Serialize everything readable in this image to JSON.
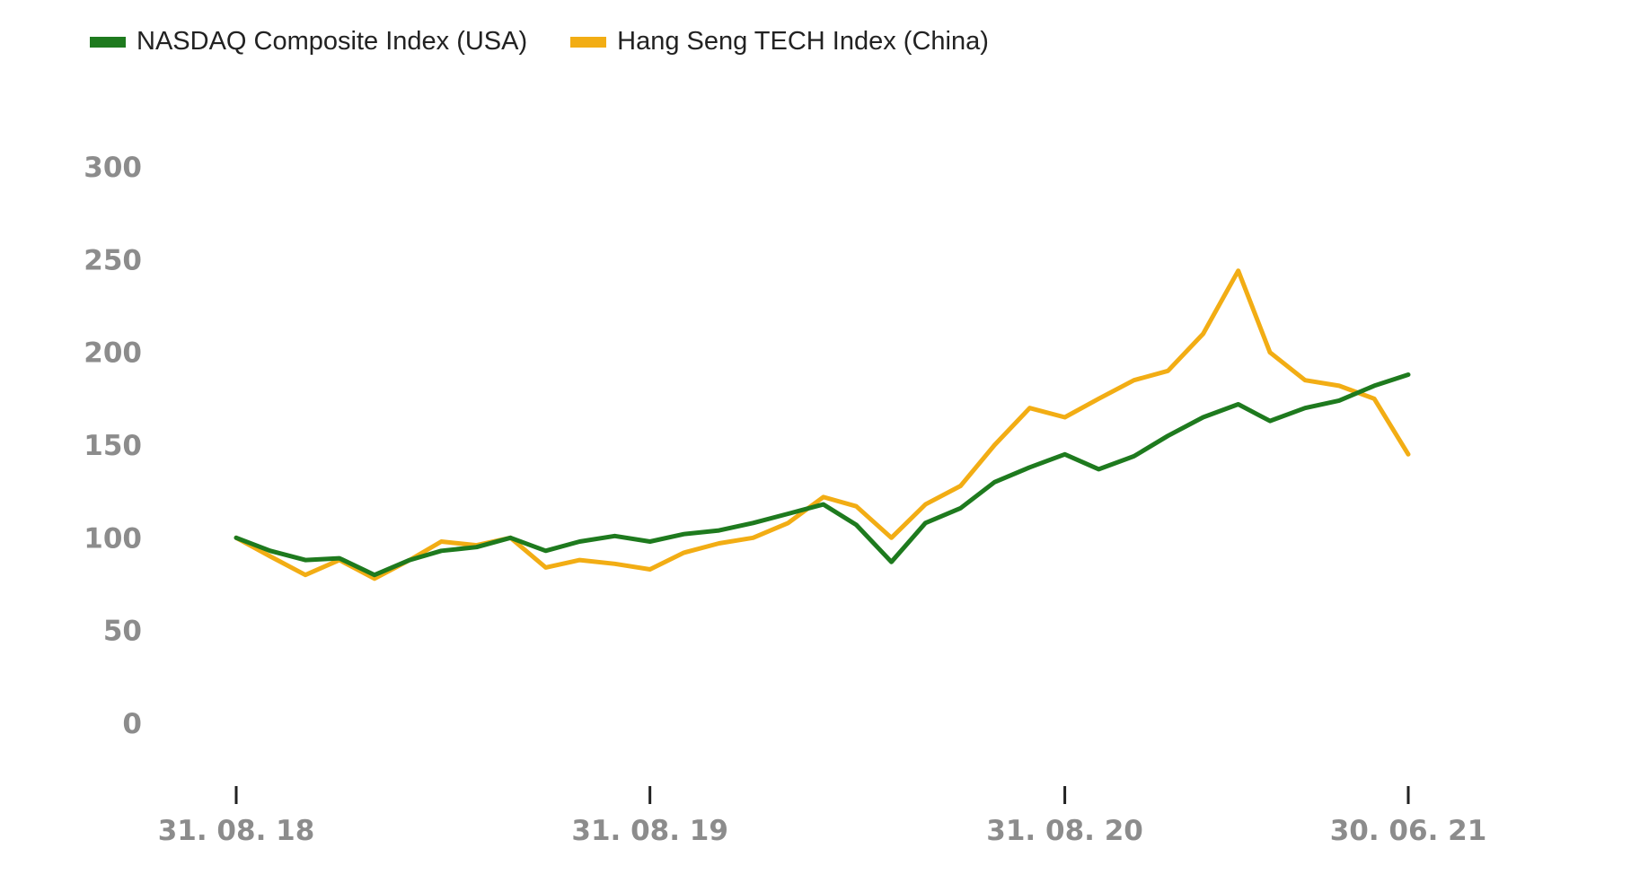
{
  "chart_data": {
    "type": "line",
    "title": "",
    "xlabel": "",
    "ylabel": "",
    "ylim": [
      0,
      300
    ],
    "y_ticks": [
      "300",
      "250",
      "200",
      "150",
      "100",
      "50",
      "0"
    ],
    "y_tick_values": [
      300,
      250,
      200,
      150,
      100,
      50,
      0
    ],
    "x_ticks": [
      "31. 08. 18",
      "31. 08. 19",
      "31. 08. 20",
      "30. 06. 21"
    ],
    "x_tick_dates": [
      "2018-08-31",
      "2019-08-31",
      "2020-08-31",
      "2021-06-30"
    ],
    "grid": false,
    "legend": "top-left",
    "x": [
      "2018-08-31",
      "2018-09-30",
      "2018-10-31",
      "2018-11-30",
      "2018-12-31",
      "2019-01-31",
      "2019-02-28",
      "2019-03-31",
      "2019-04-30",
      "2019-05-31",
      "2019-06-30",
      "2019-07-31",
      "2019-08-31",
      "2019-09-30",
      "2019-10-31",
      "2019-11-30",
      "2019-12-31",
      "2020-01-31",
      "2020-02-29",
      "2020-03-31",
      "2020-04-30",
      "2020-05-31",
      "2020-06-30",
      "2020-07-31",
      "2020-08-31",
      "2020-09-30",
      "2020-10-31",
      "2020-11-30",
      "2020-12-31",
      "2021-01-31",
      "2021-02-28",
      "2021-03-31",
      "2021-04-30",
      "2021-05-31",
      "2021-06-30"
    ],
    "series": [
      {
        "name": "NASDAQ Composite Index (USA)",
        "color": "#1e7a1e",
        "values": [
          100,
          93,
          88,
          89,
          80,
          88,
          93,
          95,
          100,
          93,
          98,
          101,
          98,
          102,
          104,
          108,
          113,
          118,
          107,
          87,
          108,
          116,
          130,
          138,
          145,
          137,
          144,
          155,
          165,
          172,
          163,
          170,
          174,
          182,
          188
        ]
      },
      {
        "name": "Hang Seng TECH Index (China)",
        "color": "#f2ad14",
        "values": [
          100,
          90,
          80,
          88,
          78,
          88,
          98,
          96,
          100,
          84,
          88,
          86,
          83,
          92,
          97,
          100,
          108,
          122,
          117,
          100,
          118,
          128,
          150,
          170,
          165,
          175,
          185,
          190,
          210,
          244,
          200,
          185,
          182,
          175,
          145
        ]
      }
    ]
  }
}
